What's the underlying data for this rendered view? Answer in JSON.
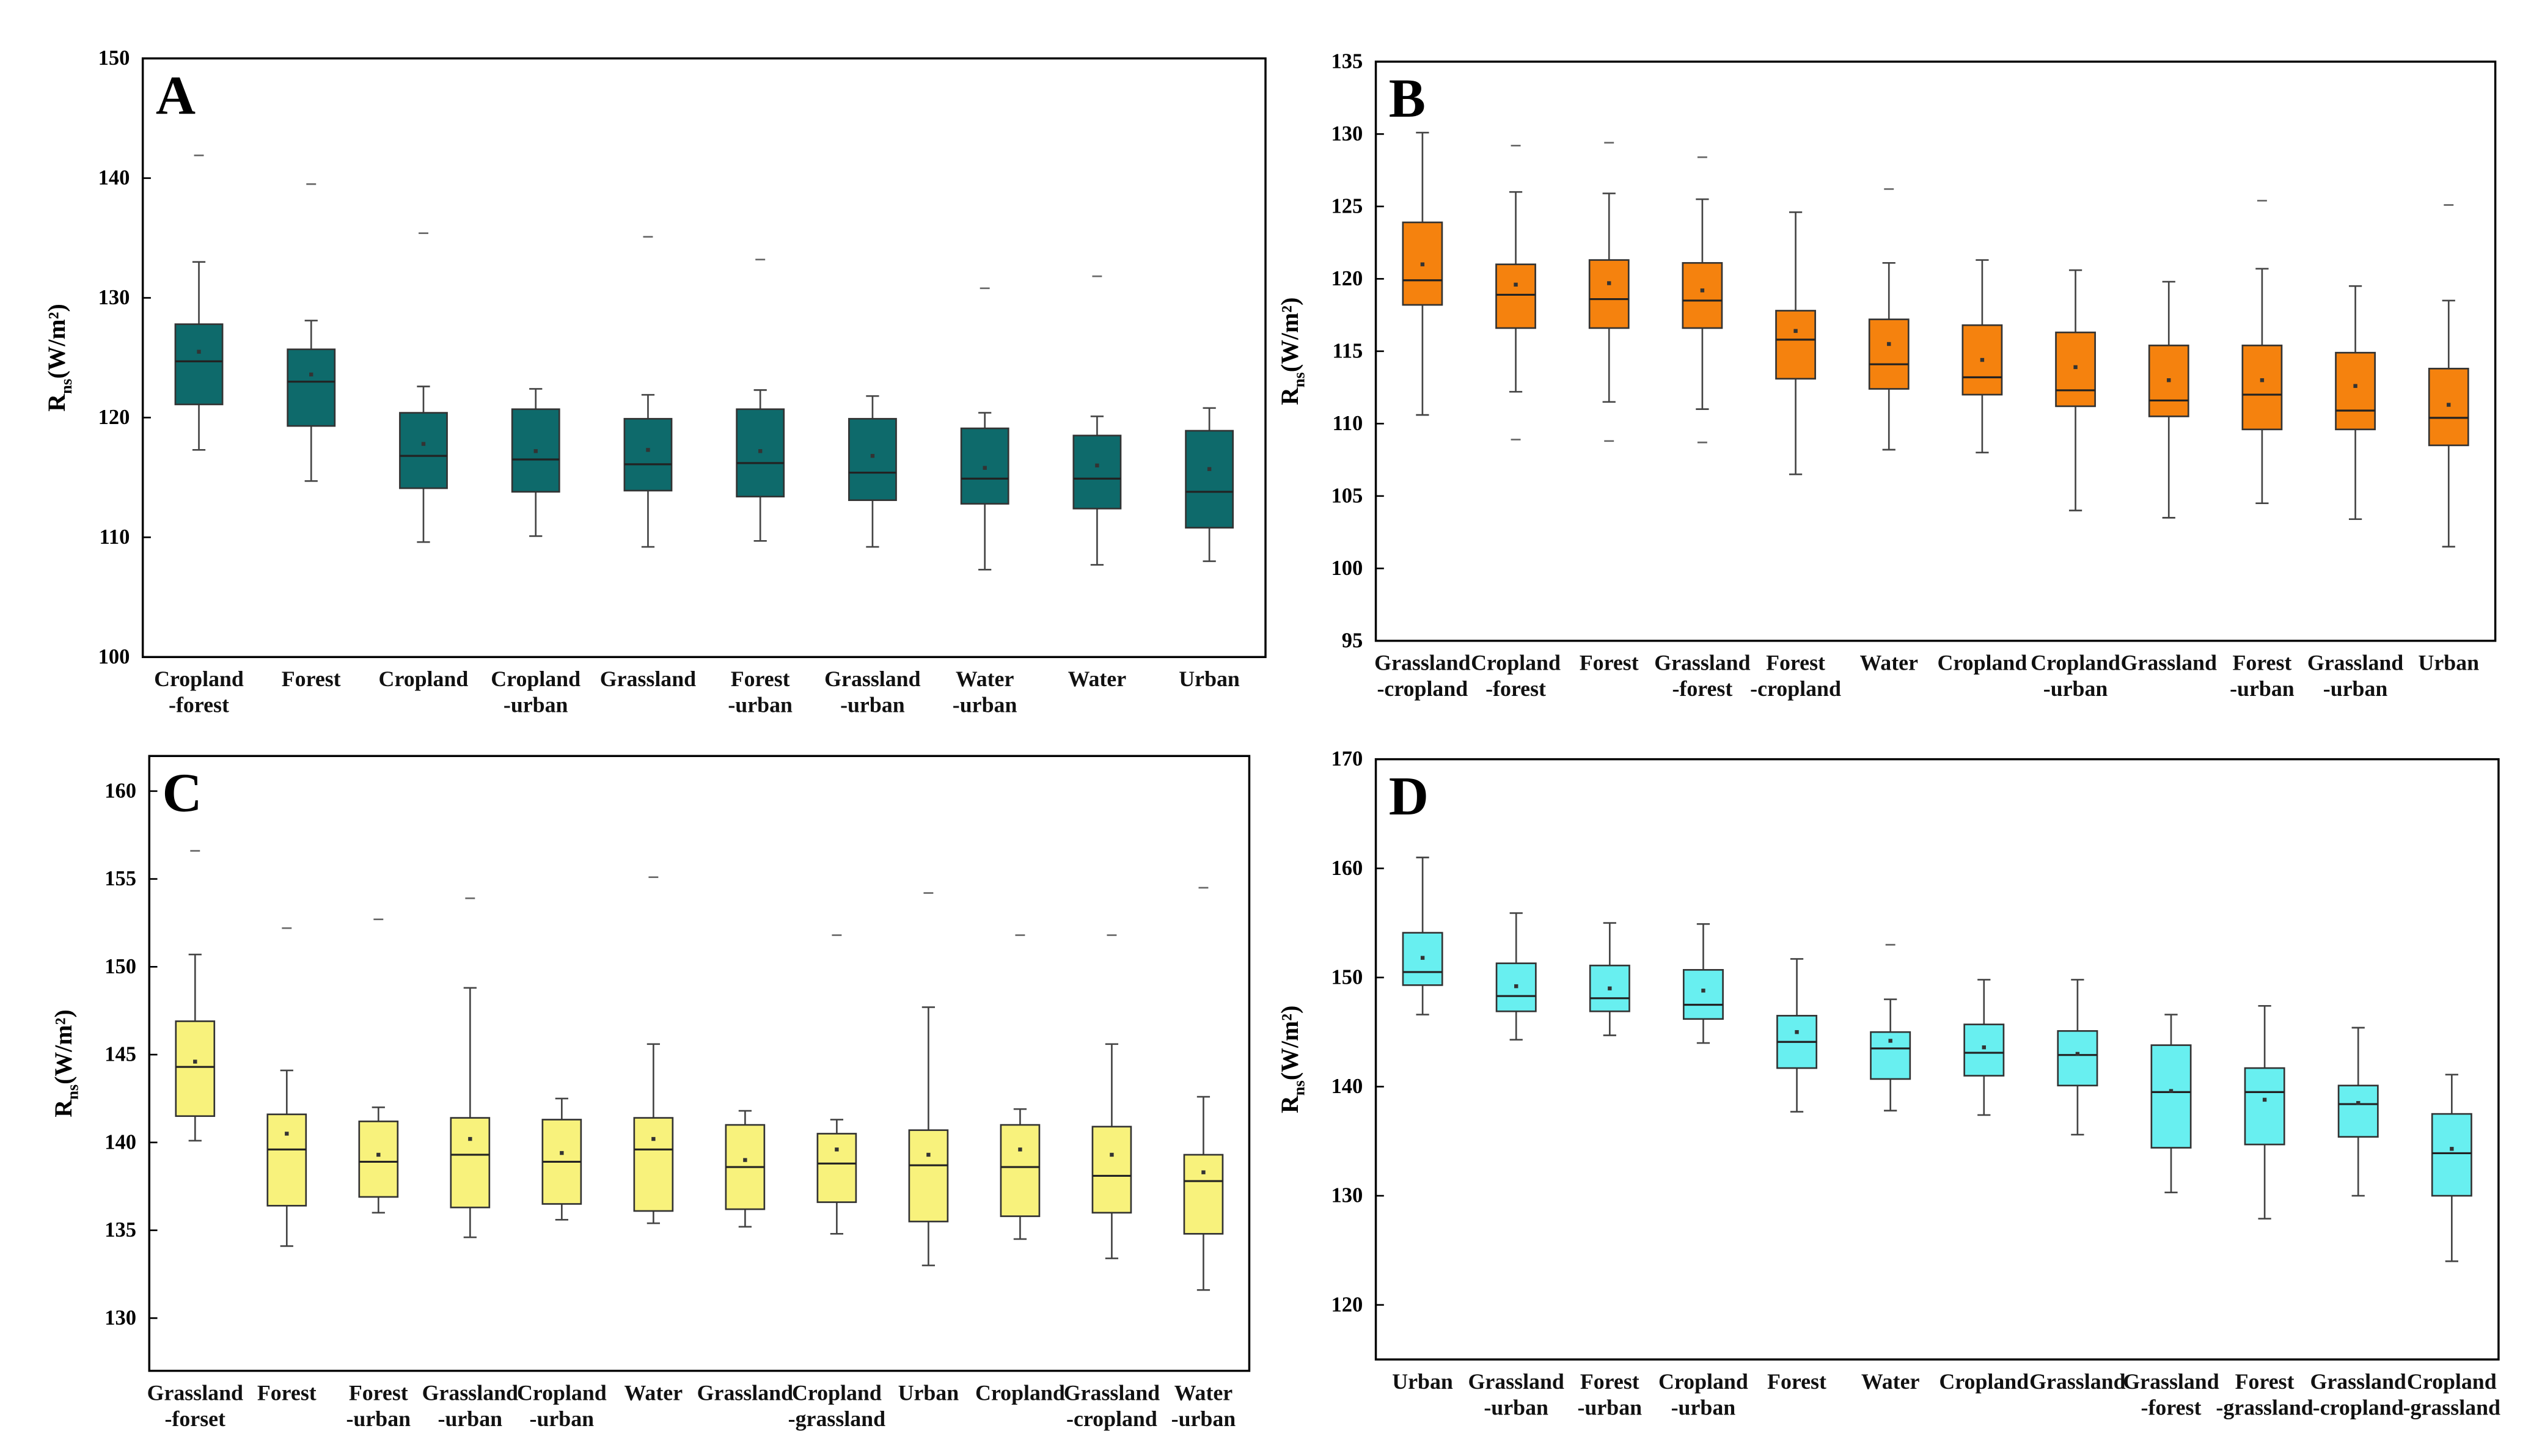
{
  "chart_data": [
    {
      "type": "box",
      "panel_label": "A",
      "y_label": {
        "base": "R",
        "sub": "ns",
        "unit": "(W/m²)"
      },
      "categories": [
        "Cropland\n-forest",
        "Forest",
        "Cropland",
        "Cropland\n-urban",
        "Grassland",
        "Forest\n-urban",
        "Grassland\n-urban",
        "Water\n-urban",
        "Water",
        "Urban"
      ],
      "color": "#0e6a6b",
      "ylim": [
        100,
        150
      ],
      "yticks": [
        100,
        110,
        120,
        130,
        140,
        150
      ],
      "boxes": {
        "max": [
          133,
          128.1,
          122.6,
          122.4,
          121.9,
          122.3,
          121.8,
          120.4,
          120.1,
          120.8
        ],
        "q3": [
          127.8,
          125.7,
          120.4,
          120.7,
          119.9,
          120.7,
          119.9,
          119.1,
          118.5,
          118.9
        ],
        "median": [
          124.7,
          123,
          116.8,
          116.5,
          116.1,
          116.2,
          115.4,
          114.9,
          114.9,
          113.8
        ],
        "q1": [
          121.1,
          119.3,
          114.1,
          113.8,
          113.9,
          113.4,
          113.1,
          112.8,
          112.4,
          110.8
        ],
        "min": [
          117.3,
          114.7,
          109.6,
          110.1,
          109.2,
          109.7,
          109.2,
          107.3,
          107.7,
          108
        ],
        "mean": [
          125.5,
          123.6,
          117.8,
          117.2,
          117.3,
          117.2,
          116.8,
          115.8,
          116,
          115.7
        ],
        "outliers": [
          [
            141.9
          ],
          [
            139.5
          ],
          [
            135.4
          ],
          [],
          [
            135.1
          ],
          [
            133.2
          ],
          [],
          [
            130.8
          ],
          [
            131.8
          ],
          []
        ]
      }
    },
    {
      "type": "box",
      "panel_label": "B",
      "y_label": {
        "base": "R",
        "sub": "ns",
        "unit": "(W/m²)"
      },
      "categories": [
        "Grassland\n-cropland",
        "Cropland\n-forest",
        "Forest",
        "Grassland\n-forest",
        "Forest\n-cropland",
        "Water",
        "Cropland",
        "Cropland\n-urban",
        "Grassland",
        "Forest\n-urban",
        "Grassland\n-urban",
        "Urban"
      ],
      "color": "#f5820e",
      "ylim": [
        95,
        135
      ],
      "yticks": [
        95,
        100,
        105,
        110,
        115,
        120,
        125,
        130,
        135
      ],
      "boxes": {
        "max": [
          130.1,
          126,
          125.9,
          125.5,
          124.6,
          121.1,
          121.3,
          120.6,
          119.8,
          120.7,
          119.5,
          118.5
        ],
        "q3": [
          123.9,
          121,
          121.3,
          121.1,
          117.8,
          117.2,
          116.8,
          116.3,
          115.4,
          115.4,
          114.9,
          113.8
        ],
        "median": [
          119.9,
          118.9,
          118.6,
          118.5,
          115.8,
          114.1,
          113.2,
          112.3,
          111.6,
          112,
          110.9,
          110.4
        ],
        "q1": [
          118.2,
          116.6,
          116.6,
          116.6,
          113.1,
          112.4,
          112,
          111.2,
          110.5,
          109.6,
          109.6,
          108.5
        ],
        "min": [
          110.6,
          112.2,
          111.5,
          111,
          106.5,
          108.2,
          108,
          104,
          103.5,
          104.5,
          103.4,
          101.5
        ],
        "mean": [
          121,
          119.6,
          119.7,
          119.2,
          116.4,
          115.5,
          114.4,
          113.9,
          113,
          113,
          112.6,
          111.3
        ],
        "outliers": [
          [],
          [
            129.2,
            108.9
          ],
          [
            129.4,
            108.8
          ],
          [
            128.4,
            108.7
          ],
          [],
          [
            126.2
          ],
          [],
          [],
          [],
          [
            125.4
          ],
          [],
          [
            125.1
          ]
        ]
      }
    },
    {
      "type": "box",
      "panel_label": "C",
      "y_label": {
        "base": "R",
        "sub": "ns",
        "unit": "(W/m²)"
      },
      "categories": [
        "Grassland\n-forset",
        "Forest",
        "Forest\n-urban",
        "Grassland\n-urban",
        "Cropland\n-urban",
        "Water",
        "Grassland",
        "Cropland\n-grassland",
        "Urban",
        "Cropland",
        "Grassland\n-cropland",
        "Water\n-urban"
      ],
      "color": "#f8f27c",
      "ylim": [
        127,
        162
      ],
      "yticks": [
        130,
        135,
        140,
        145,
        150,
        155,
        160
      ],
      "boxes": {
        "max": [
          150.7,
          144.1,
          142,
          148.8,
          142.5,
          145.6,
          141.8,
          141.3,
          147.7,
          141.9,
          145.6,
          142.6
        ],
        "q3": [
          146.9,
          141.6,
          141.2,
          141.4,
          141.3,
          141.4,
          141,
          140.5,
          140.7,
          141,
          140.9,
          139.3
        ],
        "median": [
          144.3,
          139.6,
          138.9,
          139.3,
          138.9,
          139.6,
          138.6,
          138.8,
          138.7,
          138.6,
          138.1,
          137.8
        ],
        "q1": [
          141.5,
          136.4,
          136.9,
          136.3,
          136.5,
          136.1,
          136.2,
          136.6,
          135.5,
          135.8,
          136,
          134.8
        ],
        "min": [
          140.1,
          134.1,
          136,
          134.6,
          135.6,
          135.4,
          135.2,
          134.8,
          133,
          134.5,
          133.4,
          131.6
        ],
        "mean": [
          144.6,
          140.5,
          139.3,
          140.2,
          139.4,
          140.2,
          139,
          139.6,
          139.3,
          139.6,
          139.3,
          138.3
        ],
        "outliers": [
          [
            156.6
          ],
          [
            152.2
          ],
          [
            152.7
          ],
          [
            153.9
          ],
          [],
          [
            155.1
          ],
          [],
          [
            151.8
          ],
          [
            154.2
          ],
          [
            151.8
          ],
          [
            151.8
          ],
          [
            154.5
          ]
        ]
      }
    },
    {
      "type": "box",
      "panel_label": "D",
      "y_label": {
        "base": "R",
        "sub": "ns",
        "unit": "(W/m²)"
      },
      "categories": [
        "Urban",
        "Grassland\n-urban",
        "Forest\n-urban",
        "Cropland\n-urban",
        "Forest",
        "Water",
        "Cropland",
        "Grassland",
        "Grassland\n-forest",
        "Forest\n-grassland",
        "Grassland\n-cropland",
        "Cropland\n-grassland"
      ],
      "color": "#68eff0",
      "ylim": [
        115,
        170
      ],
      "yticks": [
        120,
        130,
        140,
        150,
        160,
        170
      ],
      "boxes": {
        "max": [
          161,
          155.9,
          155,
          154.9,
          151.7,
          148,
          149.8,
          149.8,
          146.6,
          147.4,
          145.4,
          141.1
        ],
        "q3": [
          154.1,
          151.3,
          151.1,
          150.7,
          146.5,
          145,
          145.7,
          145.1,
          143.8,
          141.7,
          140.1,
          137.5
        ],
        "median": [
          150.5,
          148.3,
          148.1,
          147.5,
          144.1,
          143.5,
          143.1,
          142.9,
          139.5,
          139.5,
          138.4,
          133.9
        ],
        "q1": [
          149.3,
          146.9,
          146.9,
          146.2,
          141.7,
          140.7,
          141,
          140.1,
          134.4,
          134.7,
          135.4,
          130
        ],
        "min": [
          146.6,
          144.3,
          144.7,
          144,
          137.7,
          137.8,
          137.4,
          135.6,
          130.3,
          127.9,
          130,
          124
        ],
        "mean": [
          151.8,
          149.2,
          149,
          148.8,
          145,
          144.2,
          143.6,
          143,
          139.6,
          138.8,
          138.5,
          134.3
        ],
        "outliers": [
          [],
          [],
          [],
          [],
          [],
          [
            153
          ],
          [],
          [],
          [],
          [],
          [],
          []
        ]
      }
    }
  ]
}
